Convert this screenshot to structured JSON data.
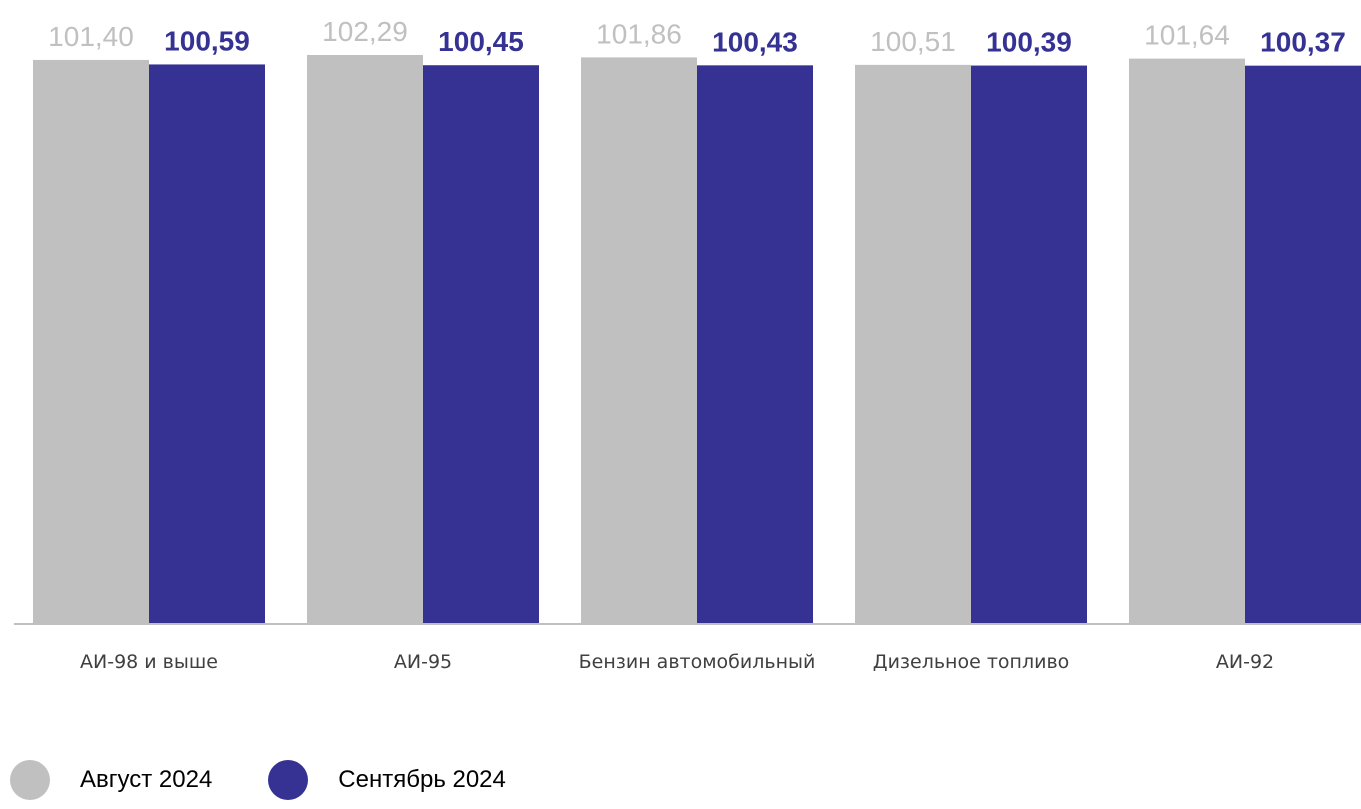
{
  "colors": {
    "august": "#c0c0c0",
    "september": "#353294",
    "axis": "#c0c0c0"
  },
  "chart_data": {
    "type": "bar",
    "categories": [
      "АИ-98 и выше",
      "АИ-95",
      "Бензин автомобильный",
      "Дизельное топливо",
      "АИ-92"
    ],
    "series": [
      {
        "name": "Август 2024",
        "values": [
          101.4,
          102.29,
          101.86,
          100.51,
          101.64
        ],
        "labels": [
          "101,40",
          "102,29",
          "101,86",
          "100,51",
          "101,64"
        ]
      },
      {
        "name": "Сентябрь 2024",
        "values": [
          100.59,
          100.45,
          100.43,
          100.39,
          100.37
        ],
        "labels": [
          "100,59",
          "100,45",
          "100,43",
          "100,39",
          "100,37"
        ]
      }
    ],
    "ylim": [
      0,
      102.29
    ],
    "grid": false,
    "legend": "bottom-left"
  },
  "legend": {
    "items": [
      {
        "label": "Август 2024",
        "color": "#c0c0c0"
      },
      {
        "label": "Сентябрь 2024",
        "color": "#353294"
      }
    ]
  }
}
